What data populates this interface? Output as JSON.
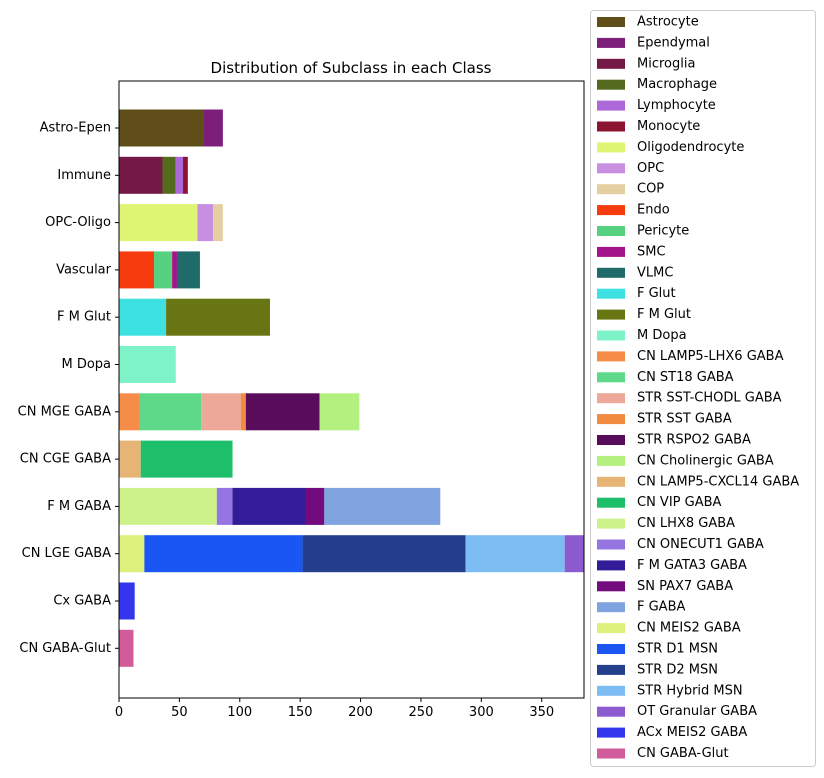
{
  "chart_data": {
    "type": "bar",
    "orientation": "horizontal",
    "stacked": true,
    "title": "Distribution of Subclass in each Class",
    "xlabel": "",
    "ylabel": "",
    "xlim": [
      0,
      385
    ],
    "xticks": [
      0,
      50,
      100,
      150,
      200,
      250,
      300,
      350
    ],
    "grid": false,
    "legend_position": "outside-right",
    "categories": [
      "Astro-Epen",
      "Immune",
      "OPC-Oligo",
      "Vascular",
      "F M Glut",
      "M Dopa",
      "CN MGE GABA",
      "CN CGE GABA",
      "F M GABA",
      "CN LGE GABA",
      "Cx GABA",
      "CN GABA-Glut"
    ],
    "series": [
      {
        "name": "Astrocyte",
        "color": "#5f4e1a",
        "values": [
          70,
          0,
          0,
          0,
          0,
          0,
          0,
          0,
          0,
          0,
          0,
          0
        ]
      },
      {
        "name": "Ependymal",
        "color": "#7b1f7a",
        "values": [
          16,
          0,
          0,
          0,
          0,
          0,
          0,
          0,
          0,
          0,
          0,
          0
        ]
      },
      {
        "name": "Microglia",
        "color": "#741845",
        "values": [
          0,
          36,
          0,
          0,
          0,
          0,
          0,
          0,
          0,
          0,
          0,
          0
        ]
      },
      {
        "name": "Macrophage",
        "color": "#546b1f",
        "values": [
          0,
          11,
          0,
          0,
          0,
          0,
          0,
          0,
          0,
          0,
          0,
          0
        ]
      },
      {
        "name": "Lymphocyte",
        "color": "#ac68d8",
        "values": [
          0,
          6,
          0,
          0,
          0,
          0,
          0,
          0,
          0,
          0,
          0,
          0
        ]
      },
      {
        "name": "Monocyte",
        "color": "#8b1530",
        "values": [
          0,
          4,
          0,
          0,
          0,
          0,
          0,
          0,
          0,
          0,
          0,
          0
        ]
      },
      {
        "name": "Oligodendrocyte",
        "color": "#def473",
        "values": [
          0,
          0,
          65,
          0,
          0,
          0,
          0,
          0,
          0,
          0,
          0,
          0
        ]
      },
      {
        "name": "OPC",
        "color": "#c88fe1",
        "values": [
          0,
          0,
          13,
          0,
          0,
          0,
          0,
          0,
          0,
          0,
          0,
          0
        ]
      },
      {
        "name": "COP",
        "color": "#e3cfa1",
        "values": [
          0,
          0,
          8,
          0,
          0,
          0,
          0,
          0,
          0,
          0,
          0,
          0
        ]
      },
      {
        "name": "Endo",
        "color": "#f63b0f",
        "values": [
          0,
          0,
          0,
          29,
          0,
          0,
          0,
          0,
          0,
          0,
          0,
          0
        ]
      },
      {
        "name": "Pericyte",
        "color": "#55d17f",
        "values": [
          0,
          0,
          0,
          15,
          0,
          0,
          0,
          0,
          0,
          0,
          0,
          0
        ]
      },
      {
        "name": "SMC",
        "color": "#a3148b",
        "values": [
          0,
          0,
          0,
          4,
          0,
          0,
          0,
          0,
          0,
          0,
          0,
          0
        ]
      },
      {
        "name": "VLMC",
        "color": "#1f6b69",
        "values": [
          0,
          0,
          0,
          19,
          0,
          0,
          0,
          0,
          0,
          0,
          0,
          0
        ]
      },
      {
        "name": "F Glut",
        "color": "#3de1e2",
        "values": [
          0,
          0,
          0,
          0,
          39,
          0,
          0,
          0,
          0,
          0,
          0,
          0
        ]
      },
      {
        "name": "F M Glut",
        "color": "#677512",
        "values": [
          0,
          0,
          0,
          0,
          86,
          0,
          0,
          0,
          0,
          0,
          0,
          0
        ]
      },
      {
        "name": "M Dopa",
        "color": "#7ef3c8",
        "values": [
          0,
          0,
          0,
          0,
          0,
          47,
          0,
          0,
          0,
          0,
          0,
          0
        ]
      },
      {
        "name": "CN LAMP5-LHX6 GABA",
        "color": "#f58c47",
        "values": [
          0,
          0,
          0,
          0,
          0,
          0,
          17,
          0,
          0,
          0,
          0,
          0
        ]
      },
      {
        "name": "CN ST18 GABA",
        "color": "#5ed98a",
        "values": [
          0,
          0,
          0,
          0,
          0,
          0,
          51,
          0,
          0,
          0,
          0,
          0
        ]
      },
      {
        "name": "STR SST-CHODL GABA",
        "color": "#eda899",
        "values": [
          0,
          0,
          0,
          0,
          0,
          0,
          33,
          0,
          0,
          0,
          0,
          0
        ]
      },
      {
        "name": "STR SST GABA",
        "color": "#f18b3f",
        "values": [
          0,
          0,
          0,
          0,
          0,
          0,
          4,
          0,
          0,
          0,
          0,
          0
        ]
      },
      {
        "name": "STR RSPO2 GABA",
        "color": "#5a0c5c",
        "values": [
          0,
          0,
          0,
          0,
          0,
          0,
          61,
          0,
          0,
          0,
          0,
          0
        ]
      },
      {
        "name": "CN Cholinergic GABA",
        "color": "#b3f07f",
        "values": [
          0,
          0,
          0,
          0,
          0,
          0,
          33,
          0,
          0,
          0,
          0,
          0
        ]
      },
      {
        "name": "CN LAMP5-CXCL14 GABA",
        "color": "#e6b474",
        "values": [
          0,
          0,
          0,
          0,
          0,
          0,
          0,
          18,
          0,
          0,
          0,
          0
        ]
      },
      {
        "name": "CN VIP GABA",
        "color": "#1dbf6a",
        "values": [
          0,
          0,
          0,
          0,
          0,
          0,
          0,
          76,
          0,
          0,
          0,
          0
        ]
      },
      {
        "name": "CN LHX8 GABA",
        "color": "#cdf28c",
        "values": [
          0,
          0,
          0,
          0,
          0,
          0,
          0,
          0,
          81,
          0,
          0,
          0
        ]
      },
      {
        "name": "CN ONECUT1 GABA",
        "color": "#9475e1",
        "values": [
          0,
          0,
          0,
          0,
          0,
          0,
          0,
          0,
          13,
          0,
          0,
          0
        ]
      },
      {
        "name": "F M GATA3 GABA",
        "color": "#321c97",
        "values": [
          0,
          0,
          0,
          0,
          0,
          0,
          0,
          0,
          60,
          0,
          0,
          0
        ]
      },
      {
        "name": "SN PAX7 GABA",
        "color": "#730b7f",
        "values": [
          0,
          0,
          0,
          0,
          0,
          0,
          0,
          0,
          16,
          0,
          0,
          0
        ]
      },
      {
        "name": "F GABA",
        "color": "#7fa3df",
        "values": [
          0,
          0,
          0,
          0,
          0,
          0,
          0,
          0,
          96,
          0,
          0,
          0
        ]
      },
      {
        "name": "CN MEIS2 GABA",
        "color": "#ddf07b",
        "values": [
          0,
          0,
          0,
          0,
          0,
          0,
          0,
          0,
          0,
          21,
          0,
          0
        ]
      },
      {
        "name": "STR D1 MSN",
        "color": "#1a56f2",
        "values": [
          0,
          0,
          0,
          0,
          0,
          0,
          0,
          0,
          0,
          131,
          0,
          0
        ]
      },
      {
        "name": "STR D2 MSN",
        "color": "#243f8c",
        "values": [
          0,
          0,
          0,
          0,
          0,
          0,
          0,
          0,
          0,
          135,
          0,
          0
        ]
      },
      {
        "name": "STR Hybrid MSN",
        "color": "#7ebcf4",
        "values": [
          0,
          0,
          0,
          0,
          0,
          0,
          0,
          0,
          0,
          82,
          0,
          0
        ]
      },
      {
        "name": "OT Granular GABA",
        "color": "#8d5bd0",
        "values": [
          0,
          0,
          0,
          0,
          0,
          0,
          0,
          0,
          0,
          18,
          0,
          0
        ]
      },
      {
        "name": "ACx MEIS2 GABA",
        "color": "#3436ee",
        "values": [
          0,
          0,
          0,
          0,
          0,
          0,
          0,
          0,
          0,
          0,
          13,
          0
        ]
      },
      {
        "name": "CN GABA-Glut",
        "color": "#d25b9c",
        "values": [
          0,
          0,
          0,
          0,
          0,
          0,
          0,
          0,
          0,
          0,
          0,
          12
        ]
      }
    ]
  }
}
